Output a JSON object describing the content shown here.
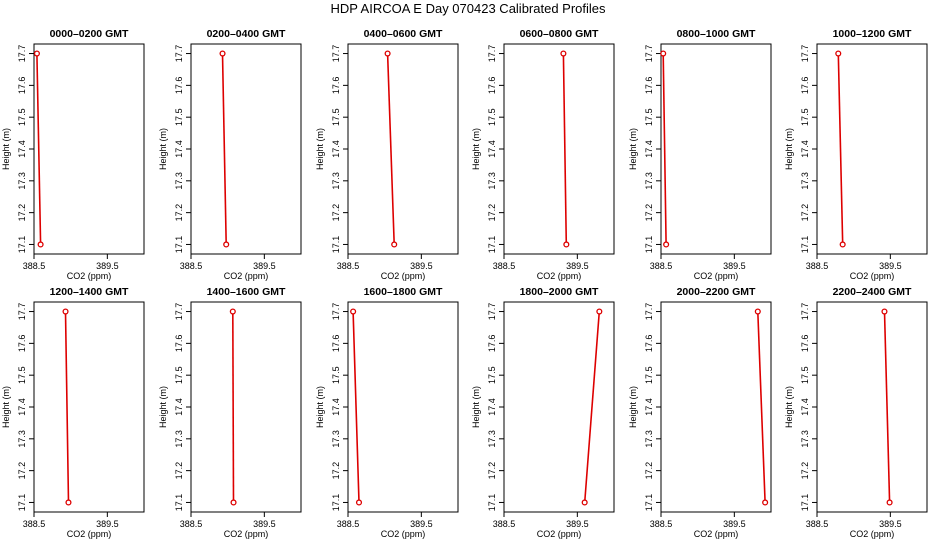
{
  "title": "HDP  AIRCOA E  Day 070423  Calibrated Profiles",
  "chart_data": {
    "type": "line",
    "xlabel": "CO2 (ppm)",
    "ylabel": "Height (m)",
    "xlim": [
      388.5,
      390.0
    ],
    "ylim": [
      17.07,
      17.73
    ],
    "xticks": [
      388.5,
      389.5
    ],
    "xtick_labels": [
      "388.5",
      "389.5"
    ],
    "yticks": [
      17.1,
      17.2,
      17.3,
      17.4,
      17.5,
      17.6,
      17.7
    ],
    "ytick_labels": [
      "17.1",
      "17.2",
      "17.3",
      "17.4",
      "17.5",
      "17.6",
      "17.7"
    ],
    "line_color": "#dd0000",
    "panels": [
      {
        "title": "0000–0200 GMT",
        "points": [
          {
            "x": 388.54,
            "y": 17.7
          },
          {
            "x": 388.59,
            "y": 17.1
          }
        ]
      },
      {
        "title": "0200–0400 GMT",
        "points": [
          {
            "x": 388.93,
            "y": 17.7
          },
          {
            "x": 388.98,
            "y": 17.1
          }
        ]
      },
      {
        "title": "0400–0600 GMT",
        "points": [
          {
            "x": 389.04,
            "y": 17.7
          },
          {
            "x": 389.13,
            "y": 17.1
          }
        ]
      },
      {
        "title": "0600–0800 GMT",
        "points": [
          {
            "x": 389.31,
            "y": 17.7
          },
          {
            "x": 389.35,
            "y": 17.1
          }
        ]
      },
      {
        "title": "0800–1000 GMT",
        "points": [
          {
            "x": 388.53,
            "y": 17.7
          },
          {
            "x": 388.57,
            "y": 17.1
          }
        ]
      },
      {
        "title": "1000–1200 GMT",
        "points": [
          {
            "x": 388.79,
            "y": 17.7
          },
          {
            "x": 388.85,
            "y": 17.1
          }
        ]
      },
      {
        "title": "1200–1400 GMT",
        "points": [
          {
            "x": 388.93,
            "y": 17.7
          },
          {
            "x": 388.97,
            "y": 17.1
          }
        ]
      },
      {
        "title": "1400–1600 GMT",
        "points": [
          {
            "x": 389.07,
            "y": 17.7
          },
          {
            "x": 389.08,
            "y": 17.1
          }
        ]
      },
      {
        "title": "1600–1800 GMT",
        "points": [
          {
            "x": 388.57,
            "y": 17.7
          },
          {
            "x": 388.65,
            "y": 17.1
          }
        ]
      },
      {
        "title": "1800–2000 GMT",
        "points": [
          {
            "x": 389.8,
            "y": 17.7
          },
          {
            "x": 389.6,
            "y": 17.1
          }
        ]
      },
      {
        "title": "2000–2200 GMT",
        "points": [
          {
            "x": 389.82,
            "y": 17.7
          },
          {
            "x": 389.92,
            "y": 17.1
          }
        ]
      },
      {
        "title": "2200–2400 GMT",
        "points": [
          {
            "x": 389.42,
            "y": 17.7
          },
          {
            "x": 389.49,
            "y": 17.1
          }
        ]
      }
    ]
  }
}
